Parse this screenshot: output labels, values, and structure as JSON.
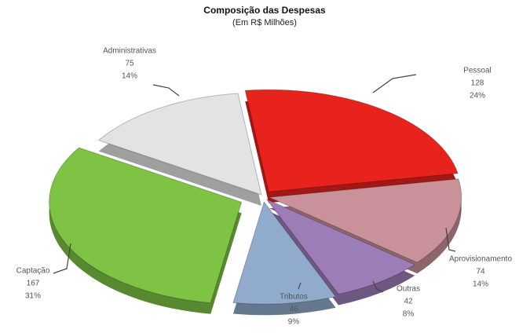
{
  "chart_data": {
    "type": "pie",
    "title": "Composição das Despesas",
    "subtitle": "(Em R$ Milhões)",
    "categories": [
      "Pessoal",
      "Aprovisionamento",
      "Outras",
      "Tributos",
      "Captação",
      "Administrativas"
    ],
    "values": [
      128,
      74,
      42,
      46,
      167,
      75
    ],
    "percentages": [
      24,
      14,
      8,
      9,
      31,
      14
    ],
    "percentage_labels": [
      "24%",
      "14%",
      "8%",
      "9%",
      "31%",
      "14%"
    ],
    "colors": [
      "#e8231d",
      "#c9919a",
      "#9d7db8",
      "#90abcb",
      "#7ec344",
      "#e3e3e3"
    ]
  }
}
